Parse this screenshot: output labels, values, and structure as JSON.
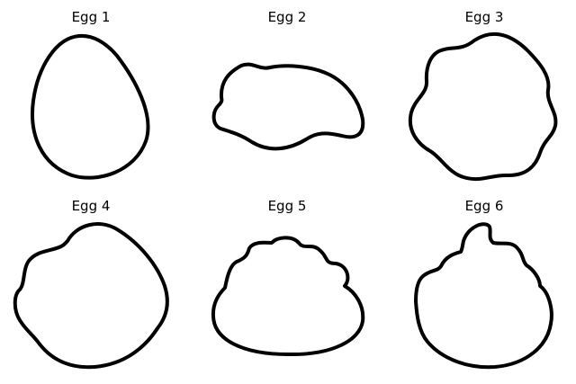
{
  "figure": {
    "background": "#ffffff",
    "outline_color": "#000000",
    "panels": [
      {
        "title": "Egg 1"
      },
      {
        "title": "Egg 2"
      },
      {
        "title": "Egg 3"
      },
      {
        "title": "Egg 4"
      },
      {
        "title": "Egg 5"
      },
      {
        "title": "Egg 6"
      }
    ]
  }
}
